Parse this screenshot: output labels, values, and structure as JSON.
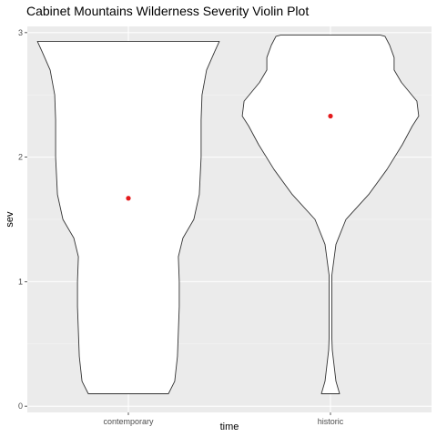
{
  "chart_data": {
    "type": "violin",
    "title": "Cabinet Mountains Wilderness Severity Violin Plot",
    "xlabel": "time",
    "ylabel": "sev",
    "categories": [
      "contemporary",
      "historic"
    ],
    "ylim": [
      -0.05,
      3.05
    ],
    "yticks": [
      0,
      1,
      2,
      3
    ],
    "grid": true,
    "legend": "none",
    "means": [
      1.67,
      2.33
    ],
    "mean_color": "#e41a1c",
    "violins": [
      {
        "name": "contemporary",
        "profile": [
          [
            0.1,
            0.44
          ],
          [
            0.2,
            0.51
          ],
          [
            0.4,
            0.54
          ],
          [
            0.6,
            0.55
          ],
          [
            0.8,
            0.56
          ],
          [
            1.0,
            0.56
          ],
          [
            1.2,
            0.55
          ],
          [
            1.35,
            0.6
          ],
          [
            1.5,
            0.72
          ],
          [
            1.7,
            0.78
          ],
          [
            2.0,
            0.8
          ],
          [
            2.3,
            0.8
          ],
          [
            2.5,
            0.81
          ],
          [
            2.7,
            0.86
          ],
          [
            2.85,
            0.95
          ],
          [
            2.93,
            1.0
          ]
        ]
      },
      {
        "name": "historic",
        "profile": [
          [
            0.1,
            0.1
          ],
          [
            0.2,
            0.06
          ],
          [
            0.45,
            0.02
          ],
          [
            0.55,
            0.015
          ],
          [
            1.05,
            0.015
          ],
          [
            1.3,
            0.06
          ],
          [
            1.5,
            0.17
          ],
          [
            1.7,
            0.42
          ],
          [
            1.9,
            0.62
          ],
          [
            2.1,
            0.79
          ],
          [
            2.25,
            0.9
          ],
          [
            2.33,
            0.97
          ],
          [
            2.45,
            0.95
          ],
          [
            2.6,
            0.78
          ],
          [
            2.7,
            0.7
          ],
          [
            2.8,
            0.7
          ],
          [
            2.9,
            0.65
          ],
          [
            2.97,
            0.6
          ],
          [
            2.98,
            0.55
          ]
        ]
      }
    ]
  }
}
